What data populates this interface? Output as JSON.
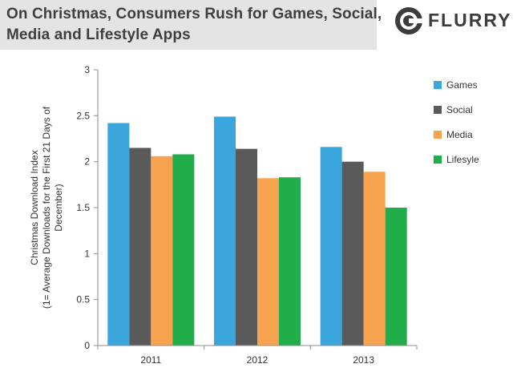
{
  "header": {
    "title_line1": "On Christmas, Consumers Rush for Games, Social,",
    "title_line2": "Media and Lifestyle Apps",
    "brand": "FLURRY",
    "brand_icon": "flurry-logo-icon"
  },
  "colors": {
    "Games": "#3aa6dc",
    "Social": "#5a5a5a",
    "Media": "#f7a24e",
    "Lifesyle": "#20ad4a"
  },
  "chart_data": {
    "type": "bar",
    "title": "On Christmas, Consumers Rush for Games, Social, Media and Lifestyle Apps",
    "categories": [
      "2011",
      "2012",
      "2013"
    ],
    "series": [
      {
        "name": "Games",
        "values": [
          2.42,
          2.49,
          2.16
        ]
      },
      {
        "name": "Social",
        "values": [
          2.15,
          2.14,
          2.0
        ]
      },
      {
        "name": "Media",
        "values": [
          2.06,
          1.82,
          1.89
        ]
      },
      {
        "name": "Lifesyle",
        "values": [
          2.08,
          1.83,
          1.5
        ]
      }
    ],
    "ylabel_lines": [
      "Christmas Download Index",
      "(1= Average Downloads for the First 21 Days of",
      "December)"
    ],
    "xlabel": "",
    "ylim": [
      0,
      3
    ],
    "yticks": [
      "0",
      "0.5",
      "1",
      "1.5",
      "2",
      "2.5",
      "3"
    ],
    "grid": false,
    "legend": "right"
  }
}
